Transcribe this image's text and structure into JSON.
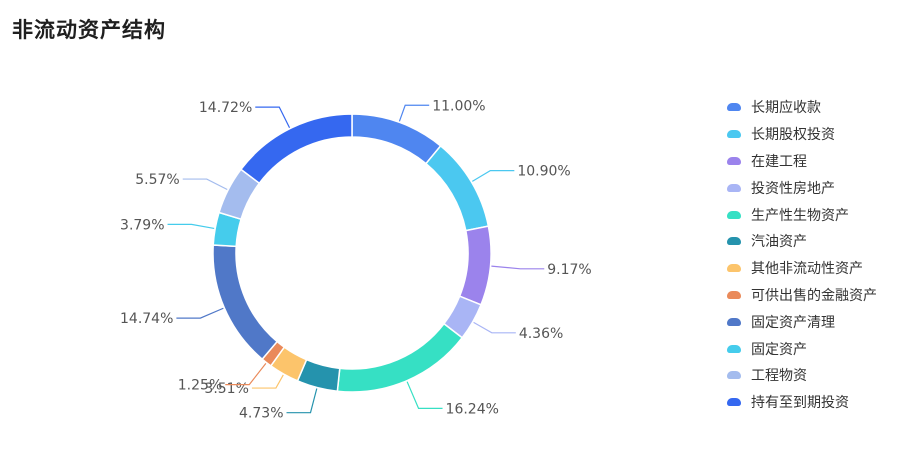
{
  "page": {
    "title": "非流动资产结构"
  },
  "chart_data": {
    "type": "pie",
    "variant": "donut",
    "title": "非流动资产结构",
    "legend_position": "right",
    "slices": [
      {
        "name": "长期应收款",
        "label": "11.00%",
        "value": 11.0,
        "color": "#4f86f0"
      },
      {
        "name": "长期股权投资",
        "label": "10.90%",
        "value": 10.9,
        "color": "#4bc8f0"
      },
      {
        "name": "在建工程",
        "label": "9.17%",
        "value": 9.17,
        "color": "#9b83ec"
      },
      {
        "name": "投资性房地产",
        "label": "4.36%",
        "value": 4.36,
        "color": "#a9b5f5"
      },
      {
        "name": "生产性生物资产",
        "label": "16.24%",
        "value": 16.24,
        "color": "#36e0c4"
      },
      {
        "name": "汽油资产",
        "label": "4.73%",
        "value": 4.73,
        "color": "#2593ad"
      },
      {
        "name": "其他非流动性资产",
        "label": "3.51%",
        "value": 3.51,
        "color": "#fcc46b"
      },
      {
        "name": "可供出售的金融资产",
        "label": "1.25%",
        "value": 1.25,
        "color": "#ea8a5a"
      },
      {
        "name": "固定资产清理",
        "label": "14.74%",
        "value": 14.74,
        "color": "#5078c8"
      },
      {
        "name": "固定资产",
        "label": "3.79%",
        "value": 3.79,
        "color": "#45ccec"
      },
      {
        "name": "工程物资",
        "label": "5.57%",
        "value": 5.57,
        "color": "#a4bcee"
      },
      {
        "name": "持有至到期投资",
        "label": "14.72%",
        "value": 14.72,
        "color": "#3568f0"
      }
    ]
  }
}
